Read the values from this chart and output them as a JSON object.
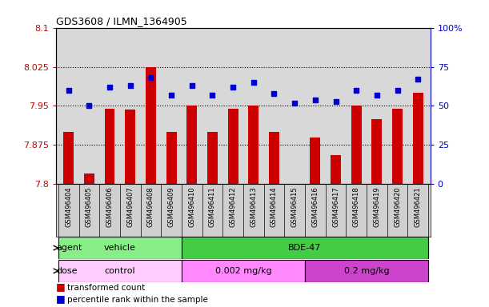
{
  "title": "GDS3608 / ILMN_1364905",
  "samples": [
    "GSM496404",
    "GSM496405",
    "GSM496406",
    "GSM496407",
    "GSM496408",
    "GSM496409",
    "GSM496410",
    "GSM496411",
    "GSM496412",
    "GSM496413",
    "GSM496414",
    "GSM496415",
    "GSM496416",
    "GSM496417",
    "GSM496418",
    "GSM496419",
    "GSM496420",
    "GSM496421"
  ],
  "bar_values": [
    7.9,
    7.82,
    7.945,
    7.943,
    8.025,
    7.9,
    7.95,
    7.9,
    7.945,
    7.95,
    7.9,
    7.8,
    7.89,
    7.855,
    7.95,
    7.925,
    7.945,
    7.975
  ],
  "dot_values": [
    60,
    50,
    62,
    63,
    68,
    57,
    63,
    57,
    62,
    65,
    58,
    52,
    54,
    53,
    60,
    57,
    60,
    67
  ],
  "ylim_left": [
    7.8,
    8.1
  ],
  "ylim_right": [
    0,
    100
  ],
  "yticks_left": [
    7.8,
    7.875,
    7.95,
    8.025,
    8.1
  ],
  "yticks_right": [
    0,
    25,
    50,
    75,
    100
  ],
  "ytick_labels_left": [
    "7.8",
    "7.875",
    "7.95",
    "8.025",
    "8.1"
  ],
  "ytick_labels_right": [
    "0",
    "25",
    "50",
    "75",
    "100%"
  ],
  "hlines": [
    7.875,
    7.95,
    8.025
  ],
  "bar_color": "#cc0000",
  "dot_color": "#0000cc",
  "bar_width": 0.5,
  "agent_labels": [
    {
      "text": "vehicle",
      "start": 0,
      "end": 5,
      "color": "#88ee88"
    },
    {
      "text": "BDE-47",
      "start": 6,
      "end": 17,
      "color": "#44cc44"
    }
  ],
  "dose_labels": [
    {
      "text": "control",
      "start": 0,
      "end": 5,
      "color": "#ffccff"
    },
    {
      "text": "0.002 mg/kg",
      "start": 6,
      "end": 11,
      "color": "#ff88ff"
    },
    {
      "text": "0.2 mg/kg",
      "start": 12,
      "end": 17,
      "color": "#cc44cc"
    }
  ],
  "legend_bar_label": "transformed count",
  "legend_dot_label": "percentile rank within the sample",
  "plot_bg_color": "#d8d8d8",
  "label_bg_color": "#d0d0d0",
  "agent_row_label": "agent",
  "dose_row_label": "dose"
}
